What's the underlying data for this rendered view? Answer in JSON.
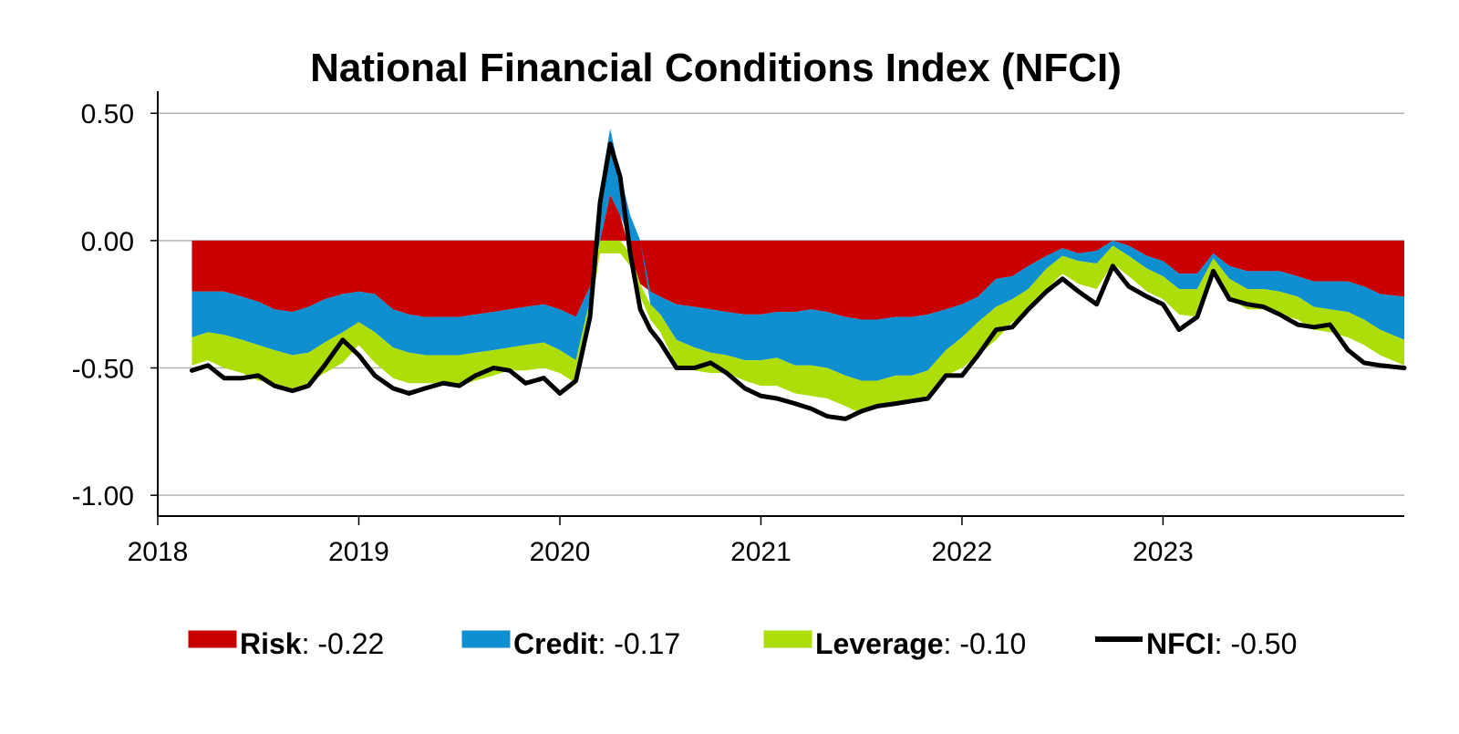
{
  "chart_data": {
    "type": "area",
    "title": "National Financial Conditions Index (NFCI)",
    "xlabel": "",
    "ylabel": "",
    "xlim": [
      2018.0,
      2024.2
    ],
    "ylim": [
      -1.0818,
      0.5868
    ],
    "x_ticks": [
      {
        "value": 2018,
        "label": "2018"
      },
      {
        "value": 2019,
        "label": "2019"
      },
      {
        "value": 2020,
        "label": "2020"
      },
      {
        "value": 2021,
        "label": "2021"
      },
      {
        "value": 2022,
        "label": "2022"
      },
      {
        "value": 2023,
        "label": "2023"
      }
    ],
    "y_ticks": [
      {
        "value": 0.5,
        "label": "0.50"
      },
      {
        "value": 0.0,
        "label": "0.00"
      },
      {
        "value": -0.5,
        "label": "-0.50"
      },
      {
        "value": -1.0,
        "label": "-1.00"
      }
    ],
    "grid": {
      "horizontal": true,
      "vertical": false
    },
    "legend_position": "bottom",
    "colors": {
      "risk": "#c80000",
      "credit": "#0f8fd0",
      "leverage": "#aede0a",
      "nfci": "#000000",
      "grid": "#b4b4b4"
    },
    "x": [
      2018.17,
      2018.25,
      2018.33,
      2018.42,
      2018.5,
      2018.58,
      2018.67,
      2018.75,
      2018.83,
      2018.92,
      2019.0,
      2019.08,
      2019.17,
      2019.25,
      2019.33,
      2019.42,
      2019.5,
      2019.58,
      2019.67,
      2019.75,
      2019.83,
      2019.92,
      2020.0,
      2020.08,
      2020.15,
      2020.2,
      2020.25,
      2020.3,
      2020.35,
      2020.4,
      2020.45,
      2020.5,
      2020.58,
      2020.67,
      2020.75,
      2020.83,
      2020.92,
      2021.0,
      2021.08,
      2021.17,
      2021.25,
      2021.33,
      2021.42,
      2021.5,
      2021.58,
      2021.67,
      2021.75,
      2021.83,
      2021.92,
      2022.0,
      2022.08,
      2022.17,
      2022.25,
      2022.33,
      2022.42,
      2022.5,
      2022.58,
      2022.67,
      2022.75,
      2022.83,
      2022.92,
      2023.0,
      2023.08,
      2023.17,
      2023.25,
      2023.33,
      2023.42,
      2023.5,
      2023.58,
      2023.67,
      2023.75,
      2023.83,
      2023.92,
      2024.0,
      2024.08,
      2024.2
    ],
    "series": [
      {
        "name": "Risk",
        "type": "stacked-area",
        "legend_value": "-0.22",
        "values": [
          -0.2,
          -0.2,
          -0.2,
          -0.22,
          -0.24,
          -0.27,
          -0.28,
          -0.26,
          -0.23,
          -0.21,
          -0.2,
          -0.21,
          -0.27,
          -0.29,
          -0.3,
          -0.3,
          -0.3,
          -0.29,
          -0.28,
          -0.27,
          -0.26,
          -0.25,
          -0.27,
          -0.3,
          -0.18,
          0.0,
          0.18,
          0.1,
          -0.05,
          -0.17,
          -0.2,
          -0.22,
          -0.25,
          -0.26,
          -0.27,
          -0.28,
          -0.29,
          -0.29,
          -0.28,
          -0.28,
          -0.27,
          -0.28,
          -0.3,
          -0.31,
          -0.31,
          -0.3,
          -0.3,
          -0.29,
          -0.27,
          -0.25,
          -0.22,
          -0.15,
          -0.14,
          -0.1,
          -0.06,
          -0.03,
          -0.05,
          -0.04,
          0.0,
          -0.02,
          -0.06,
          -0.08,
          -0.13,
          -0.13,
          -0.05,
          -0.1,
          -0.12,
          -0.12,
          -0.12,
          -0.14,
          -0.16,
          -0.16,
          -0.16,
          -0.18,
          -0.21,
          -0.22
        ]
      },
      {
        "name": "Credit",
        "type": "stacked-area",
        "legend_value": "-0.17",
        "values": [
          -0.18,
          -0.16,
          -0.17,
          -0.17,
          -0.17,
          -0.16,
          -0.17,
          -0.18,
          -0.17,
          -0.15,
          -0.12,
          -0.15,
          -0.15,
          -0.15,
          -0.15,
          -0.15,
          -0.15,
          -0.15,
          -0.15,
          -0.15,
          -0.15,
          -0.15,
          -0.16,
          -0.17,
          -0.05,
          0.2,
          0.26,
          0.16,
          0.1,
          0.0,
          -0.05,
          -0.07,
          -0.14,
          -0.16,
          -0.17,
          -0.17,
          -0.18,
          -0.18,
          -0.18,
          -0.21,
          -0.22,
          -0.22,
          -0.23,
          -0.24,
          -0.24,
          -0.23,
          -0.23,
          -0.22,
          -0.16,
          -0.13,
          -0.1,
          -0.11,
          -0.09,
          -0.09,
          -0.05,
          -0.03,
          -0.03,
          -0.05,
          -0.02,
          -0.04,
          -0.05,
          -0.06,
          -0.06,
          -0.06,
          -0.02,
          -0.05,
          -0.07,
          -0.07,
          -0.08,
          -0.08,
          -0.1,
          -0.11,
          -0.12,
          -0.13,
          -0.14,
          -0.17
        ]
      },
      {
        "name": "Leverage",
        "type": "stacked-area",
        "legend_value": "-0.10",
        "values": [
          -0.11,
          -0.11,
          -0.13,
          -0.13,
          -0.14,
          -0.13,
          -0.13,
          -0.12,
          -0.12,
          -0.12,
          -0.09,
          -0.12,
          -0.12,
          -0.12,
          -0.11,
          -0.11,
          -0.12,
          -0.11,
          -0.1,
          -0.09,
          -0.1,
          -0.1,
          -0.09,
          -0.09,
          -0.06,
          -0.05,
          -0.05,
          -0.05,
          -0.05,
          -0.05,
          -0.06,
          -0.07,
          -0.1,
          -0.09,
          -0.08,
          -0.07,
          -0.08,
          -0.1,
          -0.11,
          -0.11,
          -0.12,
          -0.12,
          -0.12,
          -0.13,
          -0.1,
          -0.1,
          -0.1,
          -0.1,
          -0.1,
          -0.12,
          -0.13,
          -0.13,
          -0.09,
          -0.09,
          -0.08,
          -0.07,
          -0.09,
          -0.1,
          -0.07,
          -0.08,
          -0.09,
          -0.09,
          -0.1,
          -0.11,
          -0.06,
          -0.08,
          -0.08,
          -0.08,
          -0.09,
          -0.09,
          -0.09,
          -0.09,
          -0.1,
          -0.1,
          -0.1,
          -0.1
        ]
      },
      {
        "name": "NFCI",
        "type": "line",
        "legend_value": "-0.50",
        "values": [
          -0.51,
          -0.49,
          -0.54,
          -0.54,
          -0.53,
          -0.57,
          -0.59,
          -0.57,
          -0.49,
          -0.39,
          -0.45,
          -0.53,
          -0.58,
          -0.6,
          -0.58,
          -0.56,
          -0.57,
          -0.53,
          -0.5,
          -0.51,
          -0.56,
          -0.54,
          -0.6,
          -0.55,
          -0.3,
          0.15,
          0.38,
          0.25,
          -0.05,
          -0.27,
          -0.35,
          -0.4,
          -0.5,
          -0.5,
          -0.48,
          -0.52,
          -0.58,
          -0.61,
          -0.62,
          -0.64,
          -0.66,
          -0.69,
          -0.7,
          -0.67,
          -0.65,
          -0.64,
          -0.63,
          -0.62,
          -0.53,
          -0.53,
          -0.45,
          -0.35,
          -0.34,
          -0.27,
          -0.2,
          -0.15,
          -0.2,
          -0.25,
          -0.1,
          -0.18,
          -0.22,
          -0.25,
          -0.35,
          -0.3,
          -0.12,
          -0.23,
          -0.25,
          -0.26,
          -0.29,
          -0.33,
          -0.34,
          -0.33,
          -0.43,
          -0.48,
          -0.49,
          -0.5
        ]
      }
    ],
    "legend": [
      {
        "name": "Risk",
        "sep": ": ",
        "value": "-0.22",
        "color": "#c80000",
        "kind": "box"
      },
      {
        "name": "Credit",
        "sep": ": ",
        "value": "-0.17",
        "color": "#0f8fd0",
        "kind": "box"
      },
      {
        "name": "Leverage",
        "sep": ": ",
        "value": "-0.10",
        "color": "#aede0a",
        "kind": "box"
      },
      {
        "name": "NFCI",
        "sep": ": ",
        "value": "-0.50",
        "color": "#000000",
        "kind": "line"
      }
    ]
  }
}
